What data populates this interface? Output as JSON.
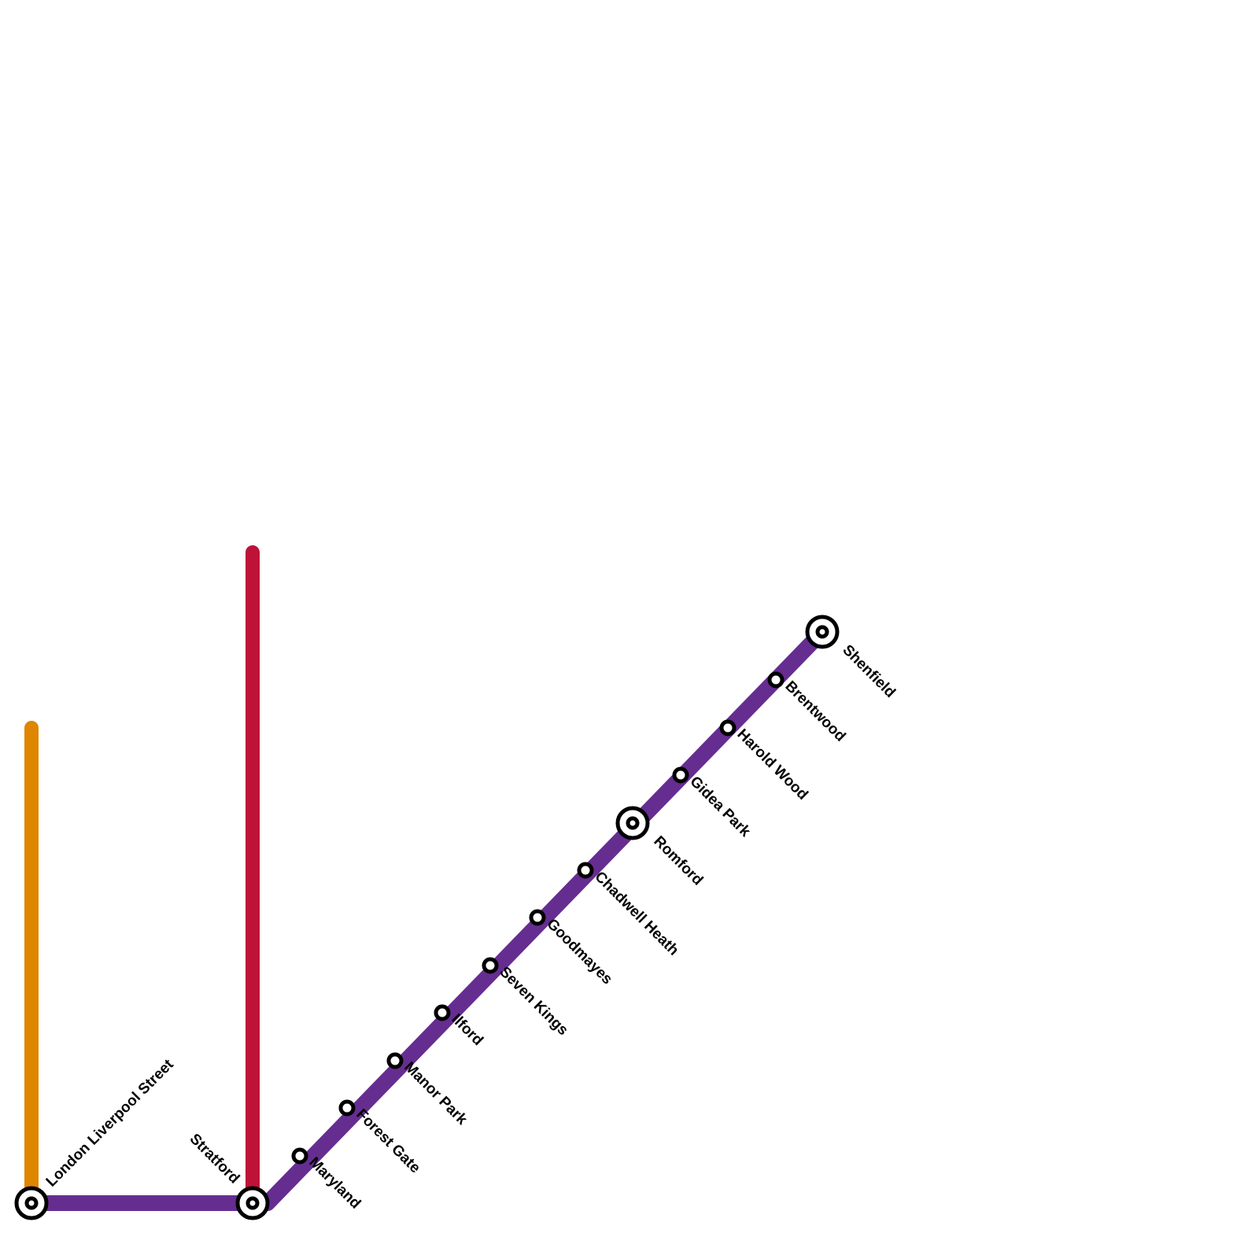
{
  "colors": {
    "elizabeth_line": "#662D91",
    "central_line": "#BE1238",
    "overground": "#DF8600",
    "station_fill": "#FFFFFF",
    "station_stroke": "#000000"
  },
  "lines": [
    {
      "id": "overground",
      "color": "#DF8600"
    },
    {
      "id": "central",
      "color": "#BE1238"
    },
    {
      "id": "elizabeth",
      "color": "#662D91"
    }
  ],
  "stations": [
    {
      "id": "liverpool-street",
      "name": "London Liverpool Street",
      "interchange": true
    },
    {
      "id": "stratford",
      "name": "Stratford",
      "interchange": true
    },
    {
      "id": "maryland",
      "name": "Maryland",
      "interchange": false
    },
    {
      "id": "forest-gate",
      "name": "Forest Gate",
      "interchange": false
    },
    {
      "id": "manor-park",
      "name": "Manor Park",
      "interchange": false
    },
    {
      "id": "ilford",
      "name": "Ilford",
      "interchange": false
    },
    {
      "id": "seven-kings",
      "name": "Seven Kings",
      "interchange": false
    },
    {
      "id": "goodmayes",
      "name": "Goodmayes",
      "interchange": false
    },
    {
      "id": "chadwell-heath",
      "name": "Chadwell Heath",
      "interchange": false
    },
    {
      "id": "romford",
      "name": "Romford",
      "interchange": true
    },
    {
      "id": "gidea-park",
      "name": "Gidea Park",
      "interchange": false
    },
    {
      "id": "harold-wood",
      "name": "Harold Wood",
      "interchange": false
    },
    {
      "id": "brentwood",
      "name": "Brentwood",
      "interchange": false
    },
    {
      "id": "shenfield",
      "name": "Shenfield",
      "interchange": true
    }
  ]
}
